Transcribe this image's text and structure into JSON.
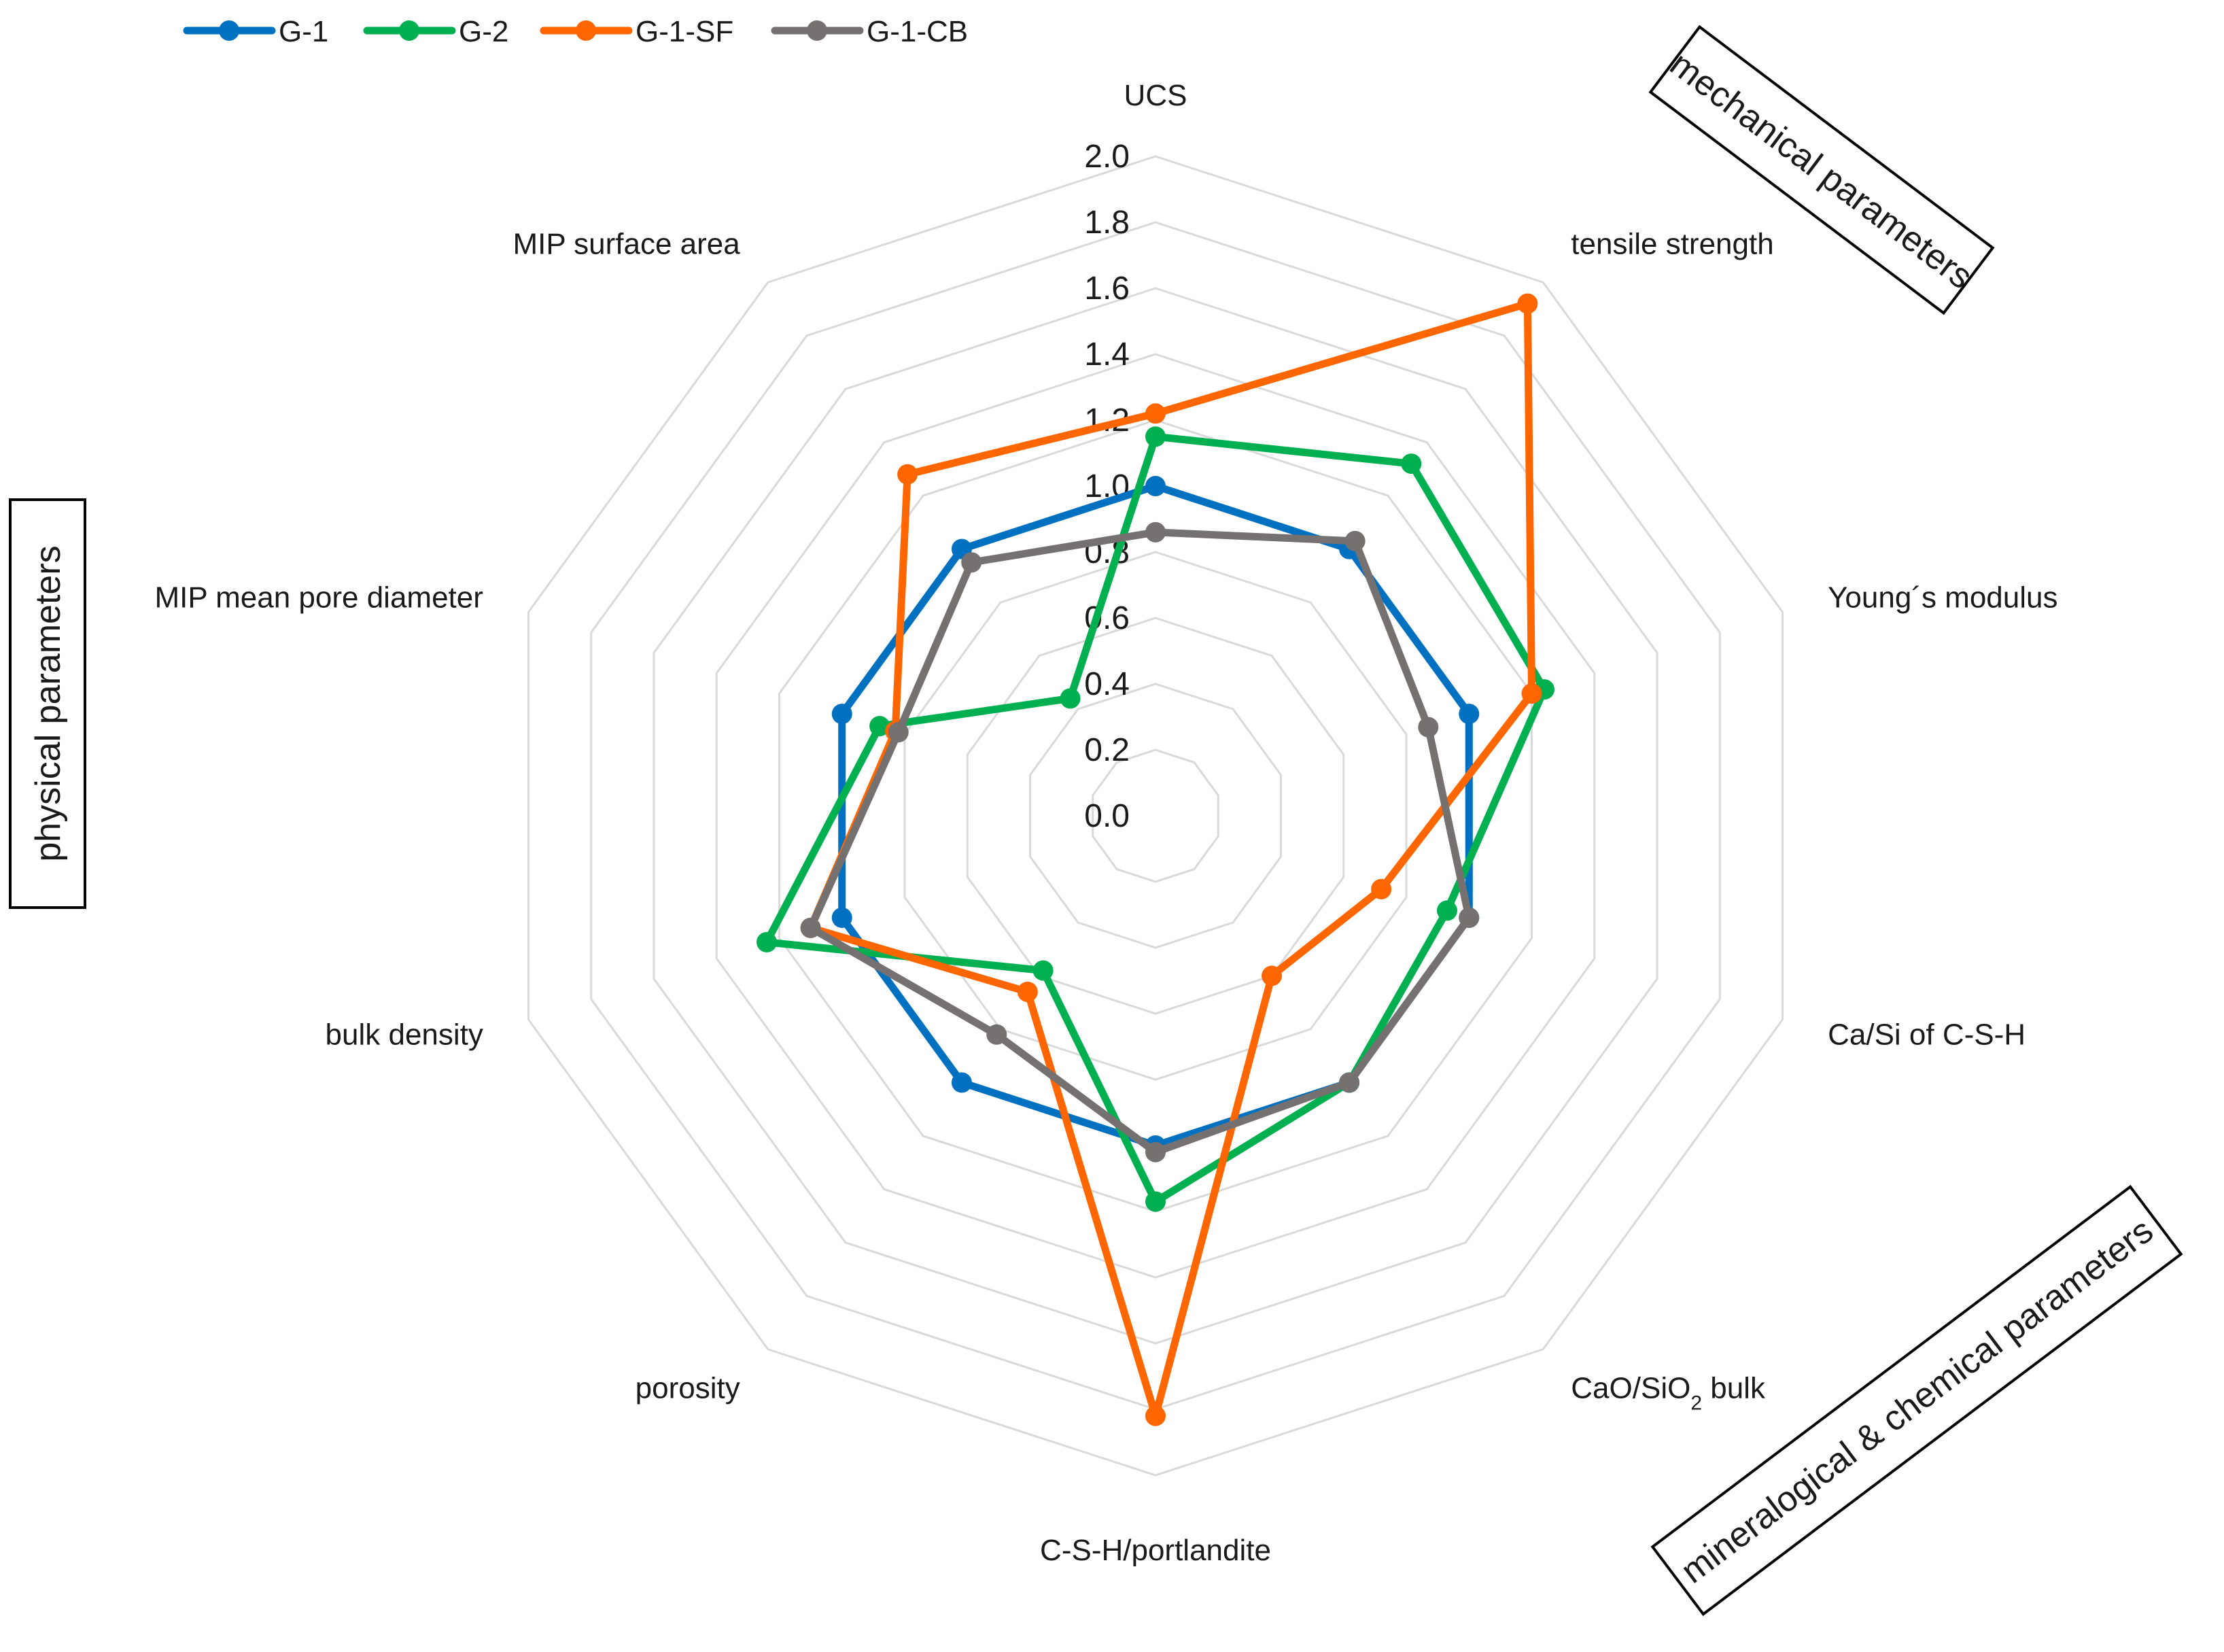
{
  "chart_data": {
    "type": "radar",
    "axes": [
      {
        "label": "UCS"
      },
      {
        "label": "tensile strength"
      },
      {
        "label": "Young´s modulus"
      },
      {
        "label": "Ca/Si of C-S-H"
      },
      {
        "label": "CaO/SiO",
        "sub": "2",
        "suffix": " bulk"
      },
      {
        "label": "C-S-H/portlandite"
      },
      {
        "label": "porosity"
      },
      {
        "label": "bulk density"
      },
      {
        "label": "MIP mean pore diameter"
      },
      {
        "label": "MIP surface area"
      }
    ],
    "rlim": [
      0,
      2.0
    ],
    "ticks": [
      "0.0",
      "0.2",
      "0.4",
      "0.6",
      "0.8",
      "1.0",
      "1.2",
      "1.4",
      "1.6",
      "1.8",
      "2.0"
    ],
    "series": [
      {
        "name": "G-1",
        "color": "#0070C0",
        "values": [
          1.0,
          1.0,
          1.0,
          1.0,
          1.0,
          1.0,
          1.0,
          1.0,
          1.0,
          1.0
        ]
      },
      {
        "name": "G-2",
        "color": "#00B050",
        "values": [
          1.15,
          1.32,
          1.24,
          0.93,
          1.0,
          1.17,
          0.58,
          1.24,
          0.88,
          0.44
        ]
      },
      {
        "name": "G-1-SF",
        "color": "#FF6600",
        "values": [
          1.22,
          1.92,
          1.2,
          0.72,
          0.6,
          1.82,
          0.66,
          1.1,
          0.83,
          1.28
        ]
      },
      {
        "name": "G-1-CB",
        "color": "#767171",
        "values": [
          0.86,
          1.03,
          0.87,
          1.0,
          1.0,
          1.02,
          0.82,
          1.1,
          0.82,
          0.95
        ]
      }
    ]
  },
  "groups": {
    "mechanical": "mechanical parameters",
    "physical": "physical parameters",
    "mineralogical": "mineralogical & chemical parameters"
  }
}
